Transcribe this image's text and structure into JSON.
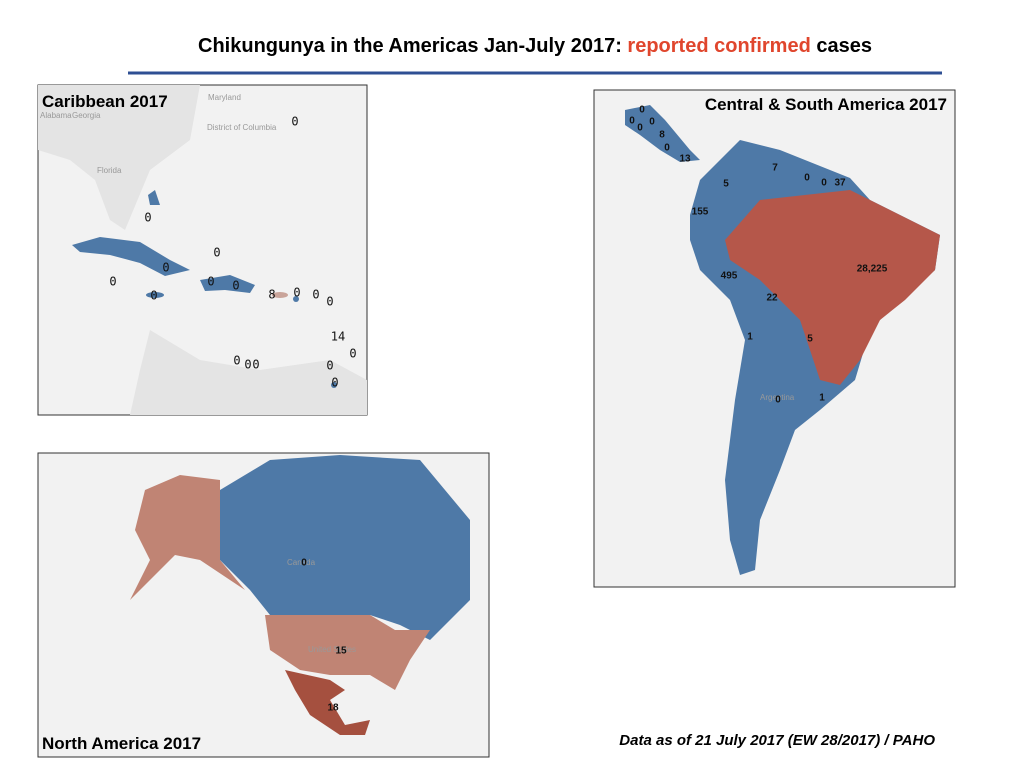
{
  "title": {
    "start": "Chikungunya in the Americas Jan-July 2017:",
    "highlight": "reported confirmed",
    "end": "cases"
  },
  "caribbean": {
    "title": "Caribbean 2017",
    "base_labels": [
      "Maryland",
      "District of Columbia",
      "Alabama",
      "Georgia",
      "Florida"
    ],
    "counts": [
      0,
      0,
      0,
      0,
      0,
      0,
      0,
      0,
      8,
      0,
      0,
      0,
      14,
      0,
      0,
      0,
      0,
      0,
      0
    ]
  },
  "central_south": {
    "title": "Central & South America 2017",
    "base_labels": [
      "Argentina"
    ],
    "counts": [
      0,
      0,
      0,
      0,
      8,
      0,
      13,
      7,
      0,
      0,
      37,
      5,
      155,
      495,
      {
        "value": 28225,
        "label": "28,225"
      },
      22,
      1,
      5,
      0,
      1
    ]
  },
  "north": {
    "title": "North America 2017",
    "base_labels": [
      "Canada",
      "United States"
    ],
    "counts": [
      0,
      15,
      18
    ]
  },
  "footer": "Data as of 21 July 2017 (EW 28/2017) / PAHO"
}
